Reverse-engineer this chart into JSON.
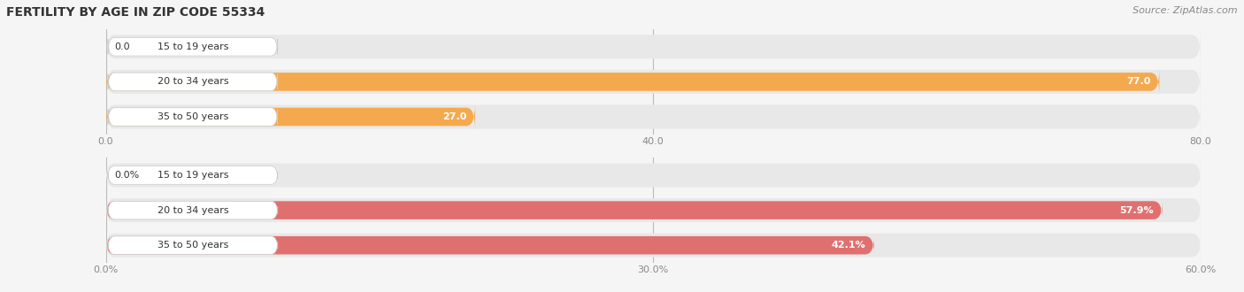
{
  "title": "FERTILITY BY AGE IN ZIP CODE 55334",
  "source": "Source: ZipAtlas.com",
  "top_chart": {
    "categories": [
      "15 to 19 years",
      "20 to 34 years",
      "35 to 50 years"
    ],
    "values": [
      0.0,
      77.0,
      27.0
    ],
    "xlim_max": 80.0,
    "xticks": [
      0.0,
      40.0,
      80.0
    ],
    "xtick_labels": [
      "0.0",
      "40.0",
      "80.0"
    ],
    "bar_color": "#F5A94E",
    "track_color": "#E8E8E8"
  },
  "bottom_chart": {
    "categories": [
      "15 to 19 years",
      "20 to 34 years",
      "35 to 50 years"
    ],
    "values": [
      0.0,
      57.9,
      42.1
    ],
    "xlim_max": 60.0,
    "xticks": [
      0.0,
      30.0,
      60.0
    ],
    "xtick_labels": [
      "0.0%",
      "30.0%",
      "60.0%"
    ],
    "bar_color": "#E07070",
    "track_color": "#E8E8E8"
  },
  "bg_color": "#F5F5F5",
  "label_text_color": "#333333",
  "tick_text_color": "#888888",
  "title_fontsize": 10,
  "source_fontsize": 8,
  "label_fontsize": 8,
  "value_fontsize": 8,
  "tick_fontsize": 8
}
